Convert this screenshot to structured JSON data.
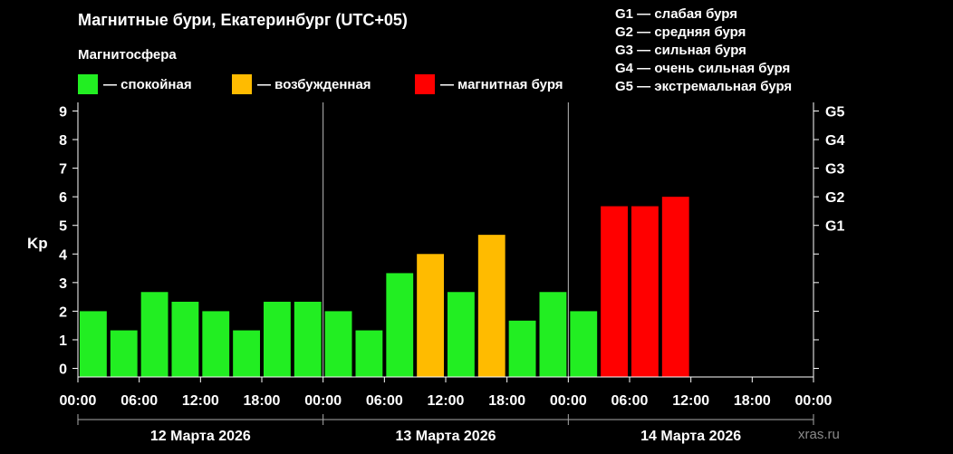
{
  "title": "Магнитные бури, Екатеринбург (UTC+05)",
  "legend": {
    "heading": "Магнитосфера",
    "items": [
      {
        "label": "— спокойная",
        "color": "#22ee22"
      },
      {
        "label": "— возбужденная",
        "color": "#ffbb00"
      },
      {
        "label": "— магнитная буря",
        "color": "#ff0000"
      }
    ]
  },
  "storm_levels": [
    "G1 — слабая буря",
    "G2 — средняя буря",
    "G3 — сильная буря",
    "G4 — очень сильная буря",
    "G5 — экстремальная буря"
  ],
  "watermark": "xras.ru",
  "chart_data": {
    "type": "bar",
    "ylabel": "Kp",
    "ylim": [
      -0.3,
      9.3
    ],
    "y_ticks": [
      "0",
      "1",
      "2",
      "3",
      "4",
      "5",
      "6",
      "7",
      "8",
      "9"
    ],
    "right_ticks": [
      {
        "label": "G1",
        "kp": 5
      },
      {
        "label": "G2",
        "kp": 6
      },
      {
        "label": "G3",
        "kp": 7
      },
      {
        "label": "G4",
        "kp": 8
      },
      {
        "label": "G5",
        "kp": 9
      }
    ],
    "x_tick_labels": [
      "00:00",
      "06:00",
      "12:00",
      "18:00",
      "00:00",
      "06:00",
      "12:00",
      "18:00",
      "00:00",
      "06:00",
      "12:00",
      "18:00",
      "00:00"
    ],
    "days": [
      "12 Марта 2026",
      "13 Марта 2026",
      "14 Марта 2026"
    ],
    "interval_hours": 3,
    "values": [
      2.0,
      1.33,
      2.67,
      2.33,
      2.0,
      1.33,
      2.33,
      2.33,
      2.0,
      1.33,
      3.33,
      4.0,
      2.67,
      4.67,
      1.67,
      2.67,
      2.0,
      5.67,
      5.67,
      6.0
    ],
    "colors": [
      "#22ee22",
      "#22ee22",
      "#22ee22",
      "#22ee22",
      "#22ee22",
      "#22ee22",
      "#22ee22",
      "#22ee22",
      "#22ee22",
      "#22ee22",
      "#22ee22",
      "#ffbb00",
      "#22ee22",
      "#ffbb00",
      "#22ee22",
      "#22ee22",
      "#22ee22",
      "#ff0000",
      "#ff0000",
      "#ff0000"
    ]
  }
}
